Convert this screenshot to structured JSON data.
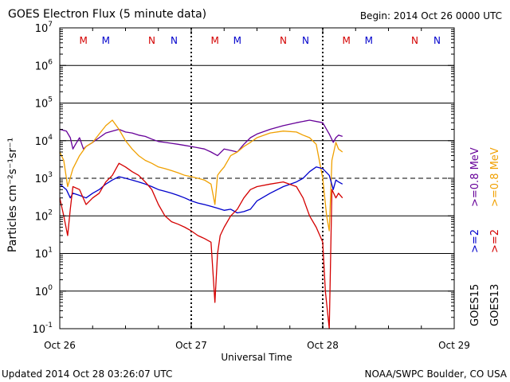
{
  "chart_data": {
    "type": "line",
    "title": "GOES Electron Flux (5 minute data)",
    "begin_label": "Begin: 2014 Oct 26 0000 UTC",
    "xlabel": "Universal Time",
    "ylabel": "Particles cm⁻²s⁻¹sr⁻¹",
    "y_scale": "log",
    "ylim": [
      0.1,
      10000000
    ],
    "xlim_days": [
      0,
      3
    ],
    "x_ticks": [
      "Oct 26",
      "Oct 27",
      "Oct 28",
      "Oct 29"
    ],
    "y_ticks": [
      {
        "base": "10",
        "exp": "-1",
        "value": 0.1
      },
      {
        "base": "10",
        "exp": "0",
        "value": 1
      },
      {
        "base": "10",
        "exp": "1",
        "value": 10
      },
      {
        "base": "10",
        "exp": "2",
        "value": 100
      },
      {
        "base": "10",
        "exp": "3",
        "value": 1000
      },
      {
        "base": "10",
        "exp": "4",
        "value": 10000
      },
      {
        "base": "10",
        "exp": "5",
        "value": 100000
      },
      {
        "base": "10",
        "exp": "6",
        "value": 1000000
      },
      {
        "base": "10",
        "exp": "7",
        "value": 10000000
      }
    ],
    "thresholds": [
      1000
    ],
    "magnetopause_markers": [
      {
        "day": 0.18,
        "label": "M",
        "color": "#d40000"
      },
      {
        "day": 0.35,
        "label": "M",
        "color": "#0000cc"
      },
      {
        "day": 0.7,
        "label": "N",
        "color": "#d40000"
      },
      {
        "day": 0.87,
        "label": "N",
        "color": "#0000cc"
      },
      {
        "day": 1.18,
        "label": "M",
        "color": "#d40000"
      },
      {
        "day": 1.35,
        "label": "M",
        "color": "#0000cc"
      },
      {
        "day": 1.7,
        "label": "N",
        "color": "#d40000"
      },
      {
        "day": 1.87,
        "label": "N",
        "color": "#0000cc"
      },
      {
        "day": 2.18,
        "label": "M",
        "color": "#d40000"
      },
      {
        "day": 2.35,
        "label": "M",
        "color": "#0000cc"
      },
      {
        "day": 2.7,
        "label": "N",
        "color": "#d40000"
      },
      {
        "day": 2.87,
        "label": "N",
        "color": "#0000cc"
      }
    ],
    "legend": {
      "goes15_label": "GOES15",
      "goes13_label": "GOES13",
      "items": [
        {
          "text": ">=2",
          "color": "#0000cc"
        },
        {
          "text": ">=0.8 MeV",
          "color": "#660099"
        },
        {
          "text": ">=2",
          "color": "#d40000"
        },
        {
          "text": ">=0.8 MeV",
          "color": "#f0a000"
        }
      ]
    },
    "series": [
      {
        "name": "GOES15 >=0.8 MeV",
        "color": "#660099",
        "x": [
          0,
          0.05,
          0.08,
          0.1,
          0.12,
          0.15,
          0.18,
          0.2,
          0.25,
          0.3,
          0.35,
          0.4,
          0.45,
          0.5,
          0.55,
          0.6,
          0.65,
          0.7,
          0.75,
          0.8,
          0.85,
          0.9,
          0.95,
          1.0,
          1.05,
          1.1,
          1.15,
          1.2,
          1.25,
          1.3,
          1.35,
          1.4,
          1.45,
          1.5,
          1.6,
          1.7,
          1.8,
          1.9,
          2.0,
          2.05,
          2.08,
          2.1,
          2.12,
          2.15
        ],
        "values": [
          20000,
          18000,
          12000,
          6000,
          8000,
          12000,
          6000,
          7000,
          9000,
          12000,
          16000,
          18000,
          20000,
          17000,
          16000,
          14000,
          13000,
          11000,
          9500,
          9000,
          8500,
          8000,
          7500,
          7000,
          6500,
          6000,
          5000,
          4000,
          6000,
          5500,
          5000,
          8000,
          12000,
          15000,
          20000,
          25000,
          30000,
          35000,
          30000,
          15000,
          9000,
          12000,
          14000,
          13000
        ]
      },
      {
        "name": "GOES13 >=0.8 MeV",
        "color": "#f0a000",
        "x": [
          0,
          0.03,
          0.06,
          0.1,
          0.15,
          0.2,
          0.25,
          0.3,
          0.35,
          0.4,
          0.45,
          0.5,
          0.55,
          0.6,
          0.65,
          0.7,
          0.75,
          0.8,
          0.85,
          0.9,
          0.95,
          1.0,
          1.05,
          1.1,
          1.15,
          1.18,
          1.2,
          1.22,
          1.25,
          1.3,
          1.35,
          1.4,
          1.45,
          1.5,
          1.6,
          1.7,
          1.8,
          1.85,
          1.9,
          1.95,
          2.0,
          2.03,
          2.05,
          2.07,
          2.1,
          2.12,
          2.15
        ],
        "values": [
          5000,
          3000,
          600,
          1800,
          4000,
          7000,
          9000,
          15000,
          25000,
          35000,
          20000,
          10000,
          6000,
          4000,
          3000,
          2500,
          2000,
          1800,
          1600,
          1400,
          1200,
          1100,
          1000,
          900,
          700,
          200,
          1200,
          1500,
          2000,
          4000,
          5000,
          7000,
          9000,
          12000,
          16000,
          18000,
          17000,
          14000,
          12000,
          8000,
          1000,
          100,
          40,
          3000,
          9000,
          6000,
          5000
        ]
      },
      {
        "name": "GOES15 >=2 MeV",
        "color": "#0000cc",
        "x": [
          0,
          0.05,
          0.08,
          0.1,
          0.15,
          0.2,
          0.25,
          0.3,
          0.35,
          0.4,
          0.45,
          0.5,
          0.55,
          0.6,
          0.65,
          0.7,
          0.75,
          0.8,
          0.85,
          0.9,
          0.95,
          1.0,
          1.05,
          1.1,
          1.15,
          1.2,
          1.25,
          1.3,
          1.35,
          1.4,
          1.45,
          1.5,
          1.6,
          1.7,
          1.8,
          1.85,
          1.9,
          1.95,
          2.0,
          2.05,
          2.08,
          2.1,
          2.12,
          2.15
        ],
        "values": [
          700,
          500,
          300,
          400,
          350,
          300,
          400,
          500,
          700,
          900,
          1100,
          1000,
          900,
          800,
          700,
          600,
          500,
          450,
          400,
          350,
          300,
          250,
          220,
          200,
          180,
          160,
          140,
          150,
          120,
          130,
          150,
          250,
          400,
          600,
          800,
          1000,
          1500,
          2000,
          1800,
          1200,
          500,
          900,
          800,
          700
        ]
      },
      {
        "name": "GOES13 >=2 MeV",
        "color": "#d40000",
        "x": [
          0,
          0.03,
          0.06,
          0.08,
          0.1,
          0.15,
          0.2,
          0.25,
          0.3,
          0.35,
          0.4,
          0.45,
          0.5,
          0.55,
          0.6,
          0.65,
          0.7,
          0.75,
          0.8,
          0.85,
          0.9,
          0.95,
          1.0,
          1.05,
          1.1,
          1.15,
          1.18,
          1.2,
          1.22,
          1.25,
          1.3,
          1.35,
          1.4,
          1.45,
          1.5,
          1.6,
          1.7,
          1.8,
          1.85,
          1.9,
          1.95,
          2.0,
          2.02,
          2.05,
          2.07,
          2.1,
          2.12,
          2.15
        ],
        "values": [
          300,
          100,
          30,
          150,
          600,
          500,
          200,
          300,
          400,
          800,
          1200,
          2500,
          2000,
          1500,
          1200,
          800,
          500,
          200,
          100,
          70,
          60,
          50,
          40,
          30,
          25,
          20,
          0.5,
          10,
          30,
          50,
          100,
          150,
          300,
          500,
          600,
          700,
          800,
          600,
          300,
          100,
          50,
          20,
          1,
          0.1,
          500,
          300,
          400,
          300
        ]
      }
    ]
  },
  "footer": {
    "updated": "Updated 2014 Oct 28 03:26:07 UTC",
    "source": "NOAA/SWPC Boulder, CO USA"
  }
}
